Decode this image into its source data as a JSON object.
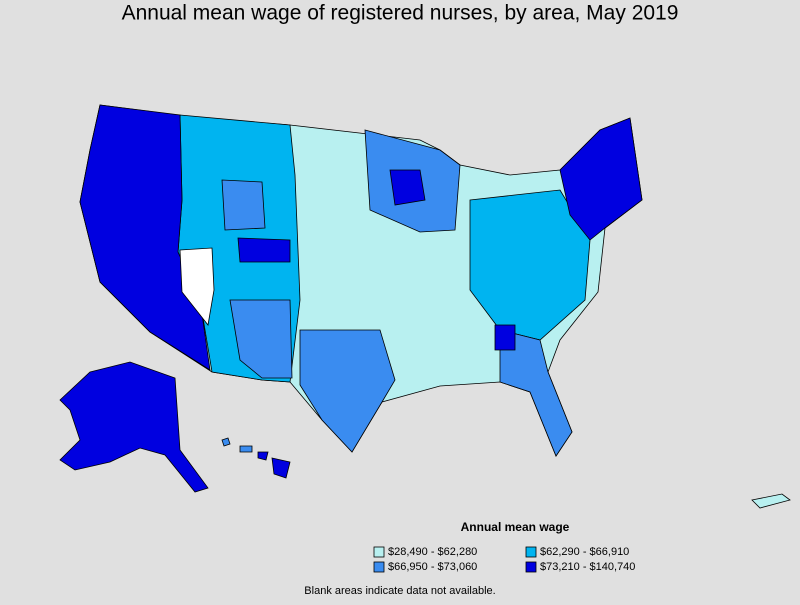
{
  "title": "Annual mean wage of registered nurses, by area, May 2019",
  "legend": {
    "title": "Annual mean wage",
    "items": [
      {
        "label": "$28,490 - $62,280",
        "color": "#b8f0f0"
      },
      {
        "label": "$62,290 - $66,910",
        "color": "#00b4f0"
      },
      {
        "label": "$66,950 - $73,060",
        "color": "#3a8cf0"
      },
      {
        "label": "$73,210 - $140,740",
        "color": "#0000e0"
      }
    ]
  },
  "note": "Blank areas indicate data not available."
}
